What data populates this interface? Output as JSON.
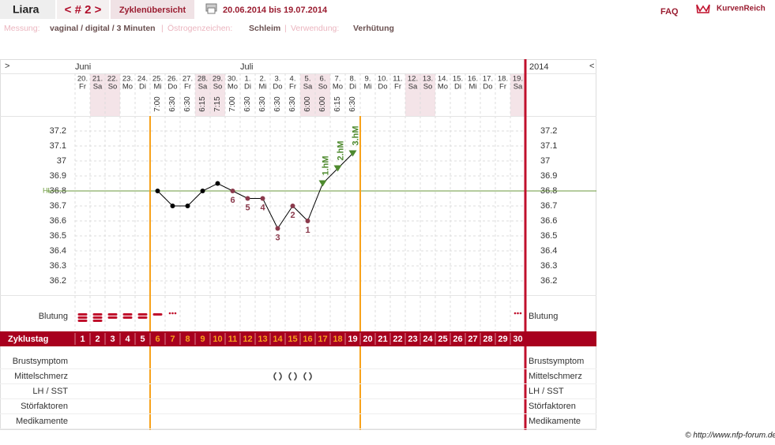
{
  "header": {
    "user": "Liara",
    "cycle_nav": "< # 2 >",
    "overview": "Zyklenübersicht",
    "period": "20.06.2014 bis 19.07.2014",
    "faq": "FAQ",
    "brand": "KurvenReich"
  },
  "info": {
    "measure_label": "Messung:",
    "measure": "vaginal / digital / 3 Minuten",
    "sep": "|",
    "estrogen_label": "Östrogenzeichen:",
    "estrogen": "Schleim",
    "usage_label": "Verwendung:",
    "usage": "Verhütung"
  },
  "chart_data": {
    "type": "line",
    "nav_prev": ">",
    "nav_next": "<",
    "year": "2014",
    "months": [
      "Juni",
      null,
      null,
      null,
      null,
      null,
      null,
      null,
      null,
      null,
      null,
      "Juli",
      null,
      null,
      null,
      null,
      null,
      null,
      null,
      null,
      null,
      null,
      null,
      null,
      null,
      null,
      null,
      null,
      null,
      null
    ],
    "dates": [
      "20.",
      "21.",
      "22.",
      "23.",
      "24.",
      "25.",
      "26.",
      "27.",
      "28.",
      "29.",
      "30.",
      "1.",
      "2.",
      "3.",
      "4.",
      "5.",
      "6.",
      "7.",
      "8.",
      "9.",
      "10.",
      "11.",
      "12.",
      "13.",
      "14.",
      "15.",
      "16.",
      "17.",
      "18.",
      "19."
    ],
    "weekdays": [
      "Fr",
      "Sa",
      "So",
      "Mo",
      "Di",
      "Mi",
      "Do",
      "Fr",
      "Sa",
      "So",
      "Mo",
      "Di",
      "Mi",
      "Do",
      "Fr",
      "Sa",
      "So",
      "Mo",
      "Di",
      "Mi",
      "Do",
      "Fr",
      "Sa",
      "So",
      "Mo",
      "Di",
      "Mi",
      "Do",
      "Fr",
      "Sa"
    ],
    "times": [
      null,
      null,
      null,
      null,
      null,
      "7:00",
      "6:30",
      "6:30",
      "6:15",
      "7:15",
      "7:00",
      "6:30",
      "6:30",
      "6:30",
      "6:30",
      "6:00",
      "6:00",
      "6:15",
      "6:30",
      null,
      null,
      null,
      null,
      null,
      null,
      null,
      null,
      null,
      null,
      null
    ],
    "values": [
      null,
      null,
      null,
      null,
      null,
      36.8,
      36.7,
      36.7,
      36.8,
      36.85,
      36.8,
      36.75,
      36.75,
      36.55,
      36.7,
      36.6,
      36.85,
      36.95,
      37.05,
      null,
      null,
      null,
      null,
      null,
      null,
      null,
      null,
      null,
      null,
      null
    ],
    "annotations": [
      null,
      null,
      null,
      null,
      null,
      null,
      null,
      null,
      null,
      null,
      "6",
      "5",
      "4",
      "3",
      "2",
      "1",
      "1.hM",
      "2.hM",
      "3.hM",
      null,
      null,
      null,
      null,
      null,
      null,
      null,
      null,
      null,
      null,
      null
    ],
    "colors": [
      null,
      null,
      null,
      null,
      null,
      "#000000",
      "#000000",
      "#000000",
      "#000000",
      "#000000",
      "#8a3a4c",
      "#8a3a4c",
      "#8a3a4c",
      "#8a3a4c",
      "#8a3a4c",
      "#8a3a4c",
      "#4e8a2e",
      "#4e8a2e",
      "#4e8a2e",
      null,
      null,
      null,
      null,
      null,
      null,
      null,
      null,
      null,
      null,
      null
    ],
    "ylim": [
      36.1,
      37.3
    ],
    "yticks": [
      37.2,
      37.1,
      37,
      36.9,
      36.8,
      36.7,
      36.6,
      36.5,
      36.4,
      36.3,
      36.2
    ],
    "grid": true,
    "hl": 36.8,
    "hl_label": "HL",
    "hl_color": "#6b9a3c",
    "bleeding": [
      3,
      3,
      2,
      2,
      2,
      1,
      0,
      null,
      null,
      null,
      null,
      null,
      null,
      null,
      null,
      null,
      null,
      null,
      null,
      null,
      null,
      null,
      null,
      null,
      null,
      null,
      null,
      null,
      null,
      0
    ],
    "cycle_days": [
      1,
      2,
      3,
      4,
      5,
      6,
      7,
      8,
      9,
      10,
      11,
      12,
      13,
      14,
      15,
      16,
      17,
      18,
      19,
      20,
      21,
      22,
      23,
      24,
      25,
      26,
      27,
      28,
      29,
      30
    ],
    "cycle_day_colors": [
      "#ffffff",
      "#ffffff",
      "#ffffff",
      "#ffffff",
      "#ffffff",
      "#f7a21b",
      "#f7a21b",
      "#f7a21b",
      "#f7a21b",
      "#f7a21b",
      "#f7a21b",
      "#f7a21b",
      "#f7a21b",
      "#f7a21b",
      "#f7a21b",
      "#f7a21b",
      "#f7a21b",
      "#f7a21b",
      "#ffffff",
      "#ffffff",
      "#ffffff",
      "#ffffff",
      "#ffffff",
      "#ffffff",
      "#ffffff",
      "#ffffff",
      "#ffffff",
      "#ffffff",
      "#ffffff",
      "#ffffff"
    ],
    "mittelschmerz_days": [
      14,
      15,
      16
    ],
    "rows": {
      "bleeding": "Blutung",
      "cycle_day": "Zyklustag",
      "breast": "Brustsymptom",
      "midpain": "Mittelschmerz",
      "lh": "LH / SST",
      "disturb": "Störfaktoren",
      "meds": "Medikamente"
    }
  },
  "footer": "© http://www.nfp-forum.de"
}
